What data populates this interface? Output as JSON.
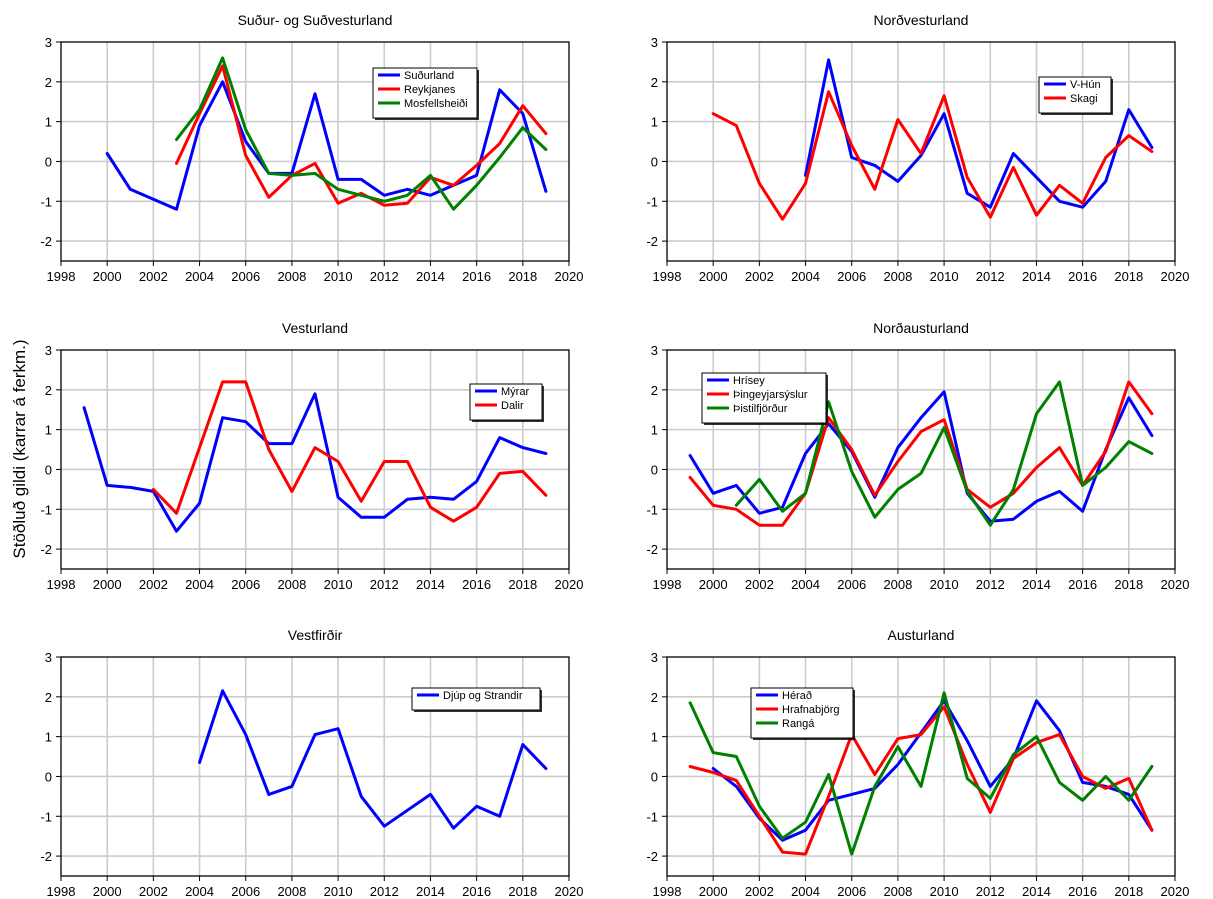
{
  "ylabel": "Stöðluð gildi (karrar á ferkm.)",
  "chart_data": [
    {
      "type": "line",
      "title": "Suður- og Suðvesturland",
      "xlim": [
        1998,
        2020
      ],
      "ylim": [
        -2.5,
        3
      ],
      "xticks": [
        1998,
        2000,
        2002,
        2004,
        2006,
        2008,
        2010,
        2012,
        2014,
        2016,
        2018,
        2020
      ],
      "yticks": [
        -2,
        -1,
        0,
        1,
        2,
        3
      ],
      "grid": true,
      "legend_position": "top-right",
      "series": [
        {
          "name": "Suðurland",
          "color": "#0000ff",
          "x": [
            2000,
            2001,
            2002,
            2003,
            2004,
            2005,
            2006,
            2007,
            2008,
            2009,
            2010,
            2011,
            2012,
            2013,
            2014,
            2015,
            2016,
            2017,
            2018,
            2019
          ],
          "y": [
            0.2,
            -0.7,
            -0.95,
            -1.2,
            0.9,
            2.0,
            0.5,
            -0.3,
            -0.3,
            1.7,
            -0.45,
            -0.45,
            -0.85,
            -0.7,
            -0.85,
            -0.6,
            -0.35,
            1.8,
            1.2,
            -0.75
          ]
        },
        {
          "name": "Reykjanes",
          "color": "#ff0000",
          "x": [
            2003,
            2004,
            2005,
            2006,
            2007,
            2008,
            2009,
            2010,
            2011,
            2012,
            2013,
            2014,
            2015,
            2016,
            2017,
            2018,
            2019
          ],
          "y": [
            -0.05,
            1.2,
            2.4,
            0.15,
            -0.9,
            -0.35,
            -0.05,
            -1.05,
            -0.8,
            -1.1,
            -1.05,
            -0.4,
            -0.6,
            -0.1,
            0.45,
            1.4,
            0.7
          ]
        },
        {
          "name": "Mosfellsheiði",
          "color": "#008000",
          "x": [
            2003,
            2004,
            2005,
            2006,
            2007,
            2008,
            2009,
            2010,
            2011,
            2012,
            2013,
            2014,
            2015,
            2016,
            2017,
            2018,
            2019
          ],
          "y": [
            0.55,
            1.3,
            2.6,
            0.8,
            -0.3,
            -0.35,
            -0.3,
            -0.7,
            -0.85,
            -1.0,
            -0.85,
            -0.35,
            -1.2,
            -0.6,
            0.1,
            0.85,
            0.3
          ]
        }
      ]
    },
    {
      "type": "line",
      "title": "Norðvesturland",
      "xlim": [
        1998,
        2020
      ],
      "ylim": [
        -2.5,
        3
      ],
      "xticks": [
        1998,
        2000,
        2002,
        2004,
        2006,
        2008,
        2010,
        2012,
        2014,
        2016,
        2018,
        2020
      ],
      "yticks": [
        -2,
        -1,
        0,
        1,
        2,
        3
      ],
      "grid": true,
      "legend_position": "top-right",
      "series": [
        {
          "name": "V-Hún",
          "color": "#0000ff",
          "x": [
            2004,
            2005,
            2006,
            2007,
            2008,
            2009,
            2010,
            2011,
            2012,
            2013,
            2014,
            2015,
            2016,
            2017,
            2018,
            2019
          ],
          "y": [
            -0.35,
            2.55,
            0.1,
            -0.1,
            -0.5,
            0.15,
            1.2,
            -0.8,
            -1.15,
            0.2,
            -0.4,
            -1.0,
            -1.15,
            -0.5,
            1.3,
            0.35
          ]
        },
        {
          "name": "Skagi",
          "color": "#ff0000",
          "x": [
            2000,
            2001,
            2002,
            2003,
            2004,
            2005,
            2006,
            2007,
            2008,
            2009,
            2010,
            2011,
            2012,
            2013,
            2014,
            2015,
            2016,
            2017,
            2018,
            2019
          ],
          "y": [
            1.2,
            0.9,
            -0.55,
            -1.45,
            -0.55,
            1.75,
            0.4,
            -0.7,
            1.05,
            0.2,
            1.65,
            -0.4,
            -1.4,
            -0.15,
            -1.35,
            -0.6,
            -1.05,
            0.1,
            0.65,
            0.25
          ]
        }
      ]
    },
    {
      "type": "line",
      "title": "Vesturland",
      "xlim": [
        1998,
        2020
      ],
      "ylim": [
        -2.5,
        3
      ],
      "xticks": [
        1998,
        2000,
        2002,
        2004,
        2006,
        2008,
        2010,
        2012,
        2014,
        2016,
        2018,
        2020
      ],
      "yticks": [
        -2,
        -1,
        0,
        1,
        2,
        3
      ],
      "grid": true,
      "legend_position": "top-right",
      "series": [
        {
          "name": "Mýrar",
          "color": "#0000ff",
          "x": [
            1999,
            2000,
            2001,
            2002,
            2003,
            2004,
            2005,
            2006,
            2007,
            2008,
            2009,
            2010,
            2011,
            2012,
            2013,
            2014,
            2015,
            2016,
            2017,
            2018,
            2019
          ],
          "y": [
            1.55,
            -0.4,
            -0.45,
            -0.55,
            -1.55,
            -0.85,
            1.3,
            1.2,
            0.65,
            0.65,
            1.9,
            -0.7,
            -1.2,
            -1.2,
            -0.75,
            -0.7,
            -0.75,
            -0.3,
            0.8,
            0.55,
            0.4
          ]
        },
        {
          "name": "Dalir",
          "color": "#ff0000",
          "x": [
            2002,
            2003,
            2004,
            2005,
            2006,
            2007,
            2008,
            2009,
            2010,
            2011,
            2012,
            2013,
            2014,
            2015,
            2016,
            2017,
            2018,
            2019
          ],
          "y": [
            -0.5,
            -1.1,
            0.55,
            2.2,
            2.2,
            0.5,
            -0.55,
            0.55,
            0.2,
            -0.8,
            0.2,
            0.2,
            -0.95,
            -1.3,
            -0.95,
            -0.1,
            -0.05,
            -0.65
          ]
        }
      ]
    },
    {
      "type": "line",
      "title": "Norðausturland",
      "xlim": [
        1998,
        2020
      ],
      "ylim": [
        -2.5,
        3
      ],
      "xticks": [
        1998,
        2000,
        2002,
        2004,
        2006,
        2008,
        2010,
        2012,
        2014,
        2016,
        2018,
        2020
      ],
      "yticks": [
        -2,
        -1,
        0,
        1,
        2,
        3
      ],
      "grid": true,
      "legend_position": "top-left",
      "series": [
        {
          "name": "Hrísey",
          "color": "#0000ff",
          "x": [
            1999,
            2000,
            2001,
            2002,
            2003,
            2004,
            2005,
            2006,
            2007,
            2008,
            2009,
            2010,
            2011,
            2012,
            2013,
            2014,
            2015,
            2016,
            2017,
            2018,
            2019
          ],
          "y": [
            0.35,
            -0.6,
            -0.4,
            -1.1,
            -0.95,
            0.4,
            1.15,
            0.45,
            -0.7,
            0.55,
            1.3,
            1.95,
            -0.6,
            -1.3,
            -1.25,
            -0.8,
            -0.55,
            -1.05,
            0.5,
            1.8,
            0.85
          ]
        },
        {
          "name": "Þingeyjarsýslur",
          "color": "#ff0000",
          "x": [
            1999,
            2000,
            2001,
            2002,
            2003,
            2004,
            2005,
            2006,
            2007,
            2008,
            2009,
            2010,
            2011,
            2012,
            2013,
            2014,
            2015,
            2016,
            2017,
            2018,
            2019
          ],
          "y": [
            -0.2,
            -0.9,
            -1.0,
            -1.4,
            -1.4,
            -0.6,
            1.3,
            0.5,
            -0.65,
            0.2,
            0.95,
            1.25,
            -0.5,
            -0.95,
            -0.6,
            0.05,
            0.55,
            -0.4,
            0.45,
            2.2,
            1.4
          ]
        },
        {
          "name": "Þistilfjörður",
          "color": "#008000",
          "x": [
            2001,
            2002,
            2003,
            2004,
            2005,
            2006,
            2007,
            2008,
            2009,
            2010,
            2011,
            2012,
            2013,
            2014,
            2015,
            2016,
            2017,
            2018,
            2019
          ],
          "y": [
            -0.9,
            -0.25,
            -1.05,
            -0.6,
            1.7,
            -0.05,
            -1.2,
            -0.5,
            -0.1,
            1.05,
            -0.55,
            -1.4,
            -0.5,
            1.4,
            2.2,
            -0.4,
            0.05,
            0.7,
            0.4
          ]
        }
      ]
    },
    {
      "type": "line",
      "title": "Vestfirðir",
      "xlim": [
        1998,
        2020
      ],
      "ylim": [
        -2.5,
        3
      ],
      "xticks": [
        1998,
        2000,
        2002,
        2004,
        2006,
        2008,
        2010,
        2012,
        2014,
        2016,
        2018,
        2020
      ],
      "yticks": [
        -2,
        -1,
        0,
        1,
        2,
        3
      ],
      "grid": true,
      "legend_position": "top-right",
      "series": [
        {
          "name": "Djúp og Strandir",
          "color": "#0000ff",
          "x": [
            2004,
            2005,
            2006,
            2007,
            2008,
            2009,
            2010,
            2011,
            2012,
            2013,
            2014,
            2015,
            2016,
            2017,
            2018,
            2019
          ],
          "y": [
            0.35,
            2.15,
            1.05,
            -0.45,
            -0.25,
            1.05,
            1.2,
            -0.5,
            -1.25,
            -0.85,
            -0.45,
            -1.3,
            -0.75,
            -1.0,
            0.8,
            0.2
          ]
        }
      ]
    },
    {
      "type": "line",
      "title": "Austurland",
      "xlim": [
        1998,
        2020
      ],
      "ylim": [
        -2.5,
        3
      ],
      "xticks": [
        1998,
        2000,
        2002,
        2004,
        2006,
        2008,
        2010,
        2012,
        2014,
        2016,
        2018,
        2020
      ],
      "yticks": [
        -2,
        -1,
        0,
        1,
        2,
        3
      ],
      "grid": true,
      "legend_position": "top-left",
      "series": [
        {
          "name": "Hérað",
          "color": "#0000ff",
          "x": [
            2000,
            2001,
            2002,
            2003,
            2004,
            2005,
            2006,
            2007,
            2008,
            2009,
            2010,
            2011,
            2012,
            2013,
            2014,
            2015,
            2016,
            2017,
            2018,
            2019
          ],
          "y": [
            0.2,
            -0.25,
            -1.05,
            -1.6,
            -1.35,
            -0.6,
            -0.45,
            -0.3,
            0.3,
            1.1,
            1.9,
            0.9,
            -0.25,
            0.45,
            1.9,
            1.15,
            -0.15,
            -0.25,
            -0.45,
            -1.35
          ]
        },
        {
          "name": "Hrafnabjörg",
          "color": "#ff0000",
          "x": [
            1999,
            2000,
            2001,
            2002,
            2003,
            2004,
            2005,
            2006,
            2007,
            2008,
            2009,
            2010,
            2011,
            2012,
            2013,
            2014,
            2015,
            2016,
            2017,
            2018,
            2019
          ],
          "y": [
            0.25,
            0.1,
            -0.1,
            -1.0,
            -1.9,
            -1.95,
            -0.5,
            1.05,
            0.05,
            0.95,
            1.05,
            1.75,
            0.3,
            -0.9,
            0.45,
            0.85,
            1.05,
            0.0,
            -0.3,
            -0.05,
            -1.35
          ]
        },
        {
          "name": "Rangá",
          "color": "#008000",
          "x": [
            1999,
            2000,
            2001,
            2002,
            2003,
            2004,
            2005,
            2006,
            2007,
            2008,
            2009,
            2010,
            2011,
            2012,
            2013,
            2014,
            2015,
            2016,
            2017,
            2018,
            2019
          ],
          "y": [
            1.85,
            0.6,
            0.5,
            -0.75,
            -1.55,
            -1.15,
            0.05,
            -1.95,
            -0.25,
            0.75,
            -0.25,
            2.1,
            -0.05,
            -0.55,
            0.55,
            1.0,
            -0.15,
            -0.6,
            0.0,
            -0.6,
            0.25
          ]
        }
      ]
    }
  ]
}
